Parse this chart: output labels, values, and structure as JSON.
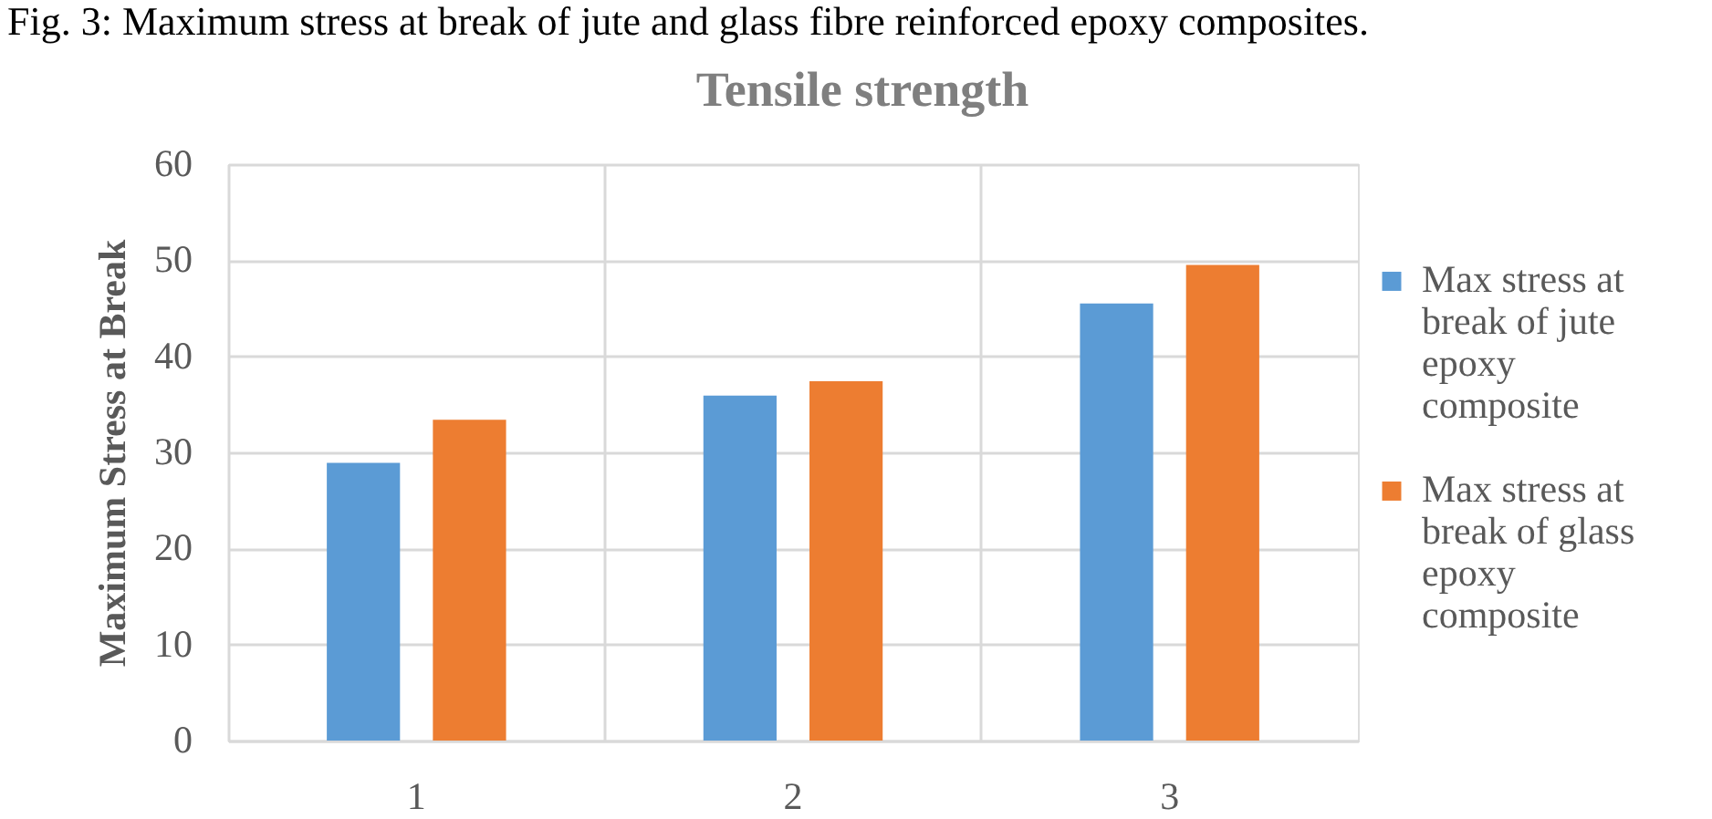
{
  "chart_data": {
    "type": "bar",
    "title": "Tensile strength",
    "ylabel": "Maximum Stress at Break",
    "categories": [
      "1",
      "2",
      "3"
    ],
    "series": [
      {
        "name": "Max stress at break of jute epoxy composite",
        "color": "#5b9bd5",
        "values": [
          28.9,
          35.9,
          45.5
        ]
      },
      {
        "name": "Max stress at break of glass epoxy composite",
        "color": "#ed7d31",
        "values": [
          33.4,
          37.4,
          49.5
        ]
      }
    ],
    "ylim": [
      0,
      60
    ],
    "yticks": [
      0,
      10,
      20,
      30,
      40,
      50,
      60
    ],
    "grid": true,
    "legend": "right",
    "annotations": [
      "Fig. 3: Maximum stress at break of jute and glass fibre reinforced epoxy composites."
    ]
  }
}
